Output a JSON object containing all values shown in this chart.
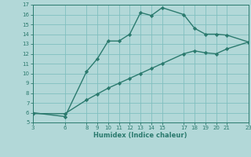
{
  "xlabel": "Humidex (Indice chaleur)",
  "line1_x": [
    3,
    6,
    8,
    9,
    10,
    11,
    12,
    13,
    14,
    15,
    17,
    18,
    19,
    20,
    21,
    23
  ],
  "line1_y": [
    6.0,
    5.6,
    10.2,
    11.5,
    13.3,
    13.3,
    14.0,
    16.2,
    15.9,
    16.7,
    16.0,
    14.6,
    14.0,
    14.0,
    13.9,
    13.2
  ],
  "line2_x": [
    3,
    6,
    8,
    9,
    10,
    11,
    12,
    13,
    14,
    15,
    17,
    18,
    19,
    20,
    21,
    23
  ],
  "line2_y": [
    5.9,
    5.9,
    7.3,
    7.9,
    8.5,
    9.0,
    9.5,
    10.0,
    10.5,
    11.0,
    12.0,
    12.3,
    12.1,
    12.0,
    12.5,
    13.2
  ],
  "line_color": "#2b7a6e",
  "bg_color": "#b2d8d8",
  "grid_color": "#80bfbf",
  "xlim": [
    3,
    23
  ],
  "ylim": [
    5,
    17
  ],
  "xticks": [
    3,
    6,
    8,
    9,
    10,
    11,
    12,
    13,
    14,
    15,
    17,
    18,
    19,
    20,
    21,
    23
  ],
  "yticks": [
    5,
    6,
    7,
    8,
    9,
    10,
    11,
    12,
    13,
    14,
    15,
    16,
    17
  ],
  "marker": "D",
  "markersize": 2.2,
  "linewidth": 1.0,
  "tick_fontsize": 5.0,
  "xlabel_fontsize": 6.0
}
